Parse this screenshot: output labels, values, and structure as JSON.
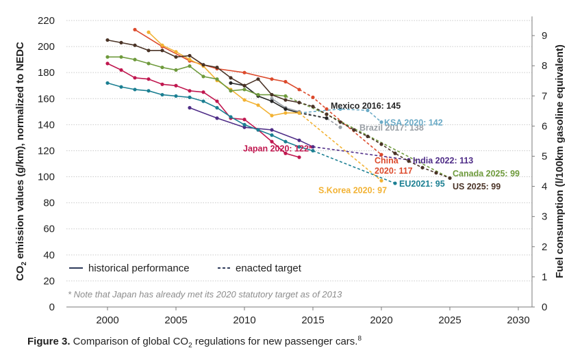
{
  "chart_data": {
    "type": "line",
    "x_axis": {
      "range": [
        1997,
        2031
      ],
      "ticks": [
        2000,
        2005,
        2010,
        2015,
        2020,
        2025,
        2030
      ]
    },
    "y_axis_left": {
      "label_prefix": "CO",
      "label_sub": "2",
      "label_suffix": " emission values (g/km), normalized to NEDC",
      "range": [
        0,
        220
      ],
      "ticks": [
        0,
        20,
        40,
        60,
        80,
        100,
        120,
        140,
        160,
        180,
        200,
        220
      ]
    },
    "y_axis_right": {
      "label": "Fuel consumption (l/100km gasoline equivalent)",
      "range": [
        0,
        9.5
      ],
      "ticks": [
        0,
        1,
        2,
        3,
        4,
        5,
        6,
        7,
        8,
        9
      ]
    },
    "grid": true,
    "legend": {
      "position": "bottom-left",
      "historical_label": "historical performance",
      "target_label": "enacted target"
    },
    "note": "* Note that Japan has already met its 2020 statutory target as of 2013",
    "series": [
      {
        "color": "#4f2d87",
        "historical": [
          [
            2006,
            153
          ],
          [
            2008,
            145
          ],
          [
            2010,
            138
          ],
          [
            2012,
            136
          ],
          [
            2014,
            128
          ],
          [
            2015,
            123
          ]
        ],
        "target": [
          [
            2015,
            123
          ],
          [
            2022,
            113
          ]
        ],
        "label": {
          "text": "India 2022: 113",
          "x": 2022.3,
          "y": 113,
          "anchor": "start"
        }
      },
      {
        "color": "#dc4a2c",
        "historical": [
          [
            2002,
            213
          ],
          [
            2004,
            200
          ],
          [
            2006,
            189
          ],
          [
            2008,
            183
          ],
          [
            2010,
            180
          ],
          [
            2012,
            175
          ],
          [
            2013,
            173
          ],
          [
            2014,
            167
          ]
        ],
        "target": [
          [
            2014,
            167
          ],
          [
            2015,
            161
          ],
          [
            2016,
            152
          ],
          [
            2020,
            117
          ]
        ],
        "label": {
          "text": "China\n2020: 117",
          "x": 2019.5,
          "y": 113,
          "anchor": "start"
        }
      },
      {
        "color": "#9aa0a6",
        "historical": [
          [
            2012,
            160
          ],
          [
            2013,
            153
          ],
          [
            2014,
            150
          ]
        ],
        "target": [
          [
            2014,
            150
          ],
          [
            2016,
            145
          ],
          [
            2017,
            138
          ]
        ],
        "label": {
          "text": "Brazil 2017: 138",
          "x": 2018.4,
          "y": 138,
          "anchor": "start"
        }
      },
      {
        "color": "#262626",
        "historical": [
          [
            2009,
            172
          ],
          [
            2010,
            170
          ],
          [
            2011,
            162
          ],
          [
            2012,
            158
          ],
          [
            2013,
            152
          ],
          [
            2014,
            149
          ]
        ],
        "target": [
          [
            2014,
            149
          ],
          [
            2016,
            145
          ]
        ],
        "label": {
          "text": "Mexico 2016: 145",
          "x": 2016.3,
          "y": 155,
          "anchor": "start"
        }
      },
      {
        "color": "#6aaac6",
        "historical": [],
        "target": [
          [
            2014,
            149
          ],
          [
            2017,
            152
          ],
          [
            2019,
            151
          ],
          [
            2020,
            142
          ]
        ],
        "label": {
          "text": "KSA 2020: 142",
          "x": 2020.2,
          "y": 142,
          "anchor": "start"
        }
      },
      {
        "color": "#c0174f",
        "historical": [
          [
            2000,
            187
          ],
          [
            2001,
            182
          ],
          [
            2002,
            176
          ],
          [
            2003,
            175
          ],
          [
            2004,
            171
          ],
          [
            2005,
            170
          ],
          [
            2006,
            166
          ],
          [
            2007,
            165
          ],
          [
            2008,
            158
          ],
          [
            2009,
            145
          ],
          [
            2010,
            144
          ],
          [
            2011,
            136
          ],
          [
            2012,
            127
          ],
          [
            2013,
            118
          ],
          [
            2014,
            115
          ]
        ],
        "target": [],
        "label": {
          "text": "Japan 2020: 122*",
          "x": 2009.9,
          "y": 122,
          "anchor": "start"
        }
      },
      {
        "color": "#f2b233",
        "historical": [
          [
            2003,
            211
          ],
          [
            2004,
            201
          ],
          [
            2005,
            196
          ],
          [
            2006,
            190
          ],
          [
            2007,
            185
          ],
          [
            2008,
            174
          ],
          [
            2009,
            167
          ],
          [
            2010,
            159
          ],
          [
            2011,
            155
          ],
          [
            2012,
            147
          ],
          [
            2013,
            149
          ],
          [
            2014,
            149
          ]
        ],
        "target": [
          [
            2014,
            149
          ],
          [
            2020,
            97
          ]
        ],
        "label": {
          "text": "S.Korea 2020: 97",
          "x": 2015.4,
          "y": 90,
          "anchor": "start"
        }
      },
      {
        "color": "#1b7f92",
        "historical": [
          [
            2000,
            172
          ],
          [
            2001,
            169
          ],
          [
            2002,
            167
          ],
          [
            2003,
            166
          ],
          [
            2004,
            163
          ],
          [
            2005,
            162
          ],
          [
            2006,
            161
          ],
          [
            2007,
            158
          ],
          [
            2008,
            153
          ],
          [
            2009,
            146
          ],
          [
            2010,
            140
          ],
          [
            2011,
            136
          ],
          [
            2012,
            132
          ],
          [
            2013,
            127
          ],
          [
            2014,
            123
          ],
          [
            2015,
            120
          ]
        ],
        "target": [
          [
            2015,
            120
          ],
          [
            2021,
            95
          ]
        ],
        "label": {
          "text": "EU2021: 95",
          "x": 2021.3,
          "y": 95,
          "anchor": "start"
        }
      },
      {
        "color": "#6e9a3c",
        "historical": [
          [
            2000,
            192
          ],
          [
            2001,
            192
          ],
          [
            2002,
            190
          ],
          [
            2003,
            187
          ],
          [
            2004,
            184
          ],
          [
            2005,
            182
          ],
          [
            2006,
            185
          ],
          [
            2007,
            177
          ],
          [
            2008,
            175
          ],
          [
            2009,
            166
          ],
          [
            2010,
            167
          ],
          [
            2011,
            163
          ],
          [
            2012,
            163
          ],
          [
            2013,
            162
          ]
        ],
        "target": [
          [
            2013,
            162
          ],
          [
            2016,
            148
          ],
          [
            2025,
            99
          ]
        ],
        "label": {
          "text": "Canada 2025: 99",
          "x": 2025.2,
          "y": 103,
          "anchor": "start"
        }
      },
      {
        "color": "#4a3326",
        "historical": [
          [
            2000,
            205
          ],
          [
            2001,
            203
          ],
          [
            2002,
            201
          ],
          [
            2003,
            197
          ],
          [
            2004,
            197
          ],
          [
            2005,
            192
          ],
          [
            2006,
            193
          ],
          [
            2007,
            186
          ],
          [
            2008,
            184
          ],
          [
            2009,
            176
          ],
          [
            2010,
            170
          ],
          [
            2011,
            175
          ],
          [
            2012,
            163
          ],
          [
            2013,
            159
          ],
          [
            2014,
            157
          ]
        ],
        "target": [
          [
            2014,
            157
          ],
          [
            2015,
            154
          ],
          [
            2016,
            148
          ],
          [
            2017,
            142
          ],
          [
            2018,
            136
          ],
          [
            2019,
            131
          ],
          [
            2020,
            125
          ],
          [
            2021,
            118
          ],
          [
            2022,
            112
          ],
          [
            2023,
            107
          ],
          [
            2024,
            103
          ],
          [
            2025,
            99
          ]
        ],
        "label": {
          "text": "US 2025: 99",
          "x": 2025.2,
          "y": 93,
          "anchor": "start"
        }
      }
    ]
  },
  "caption": {
    "label": "Figure 3.",
    "text_before": " Comparison of global CO",
    "text_sub": "2",
    "text_after": " regulations for new passenger cars.",
    "superscript": "8"
  }
}
